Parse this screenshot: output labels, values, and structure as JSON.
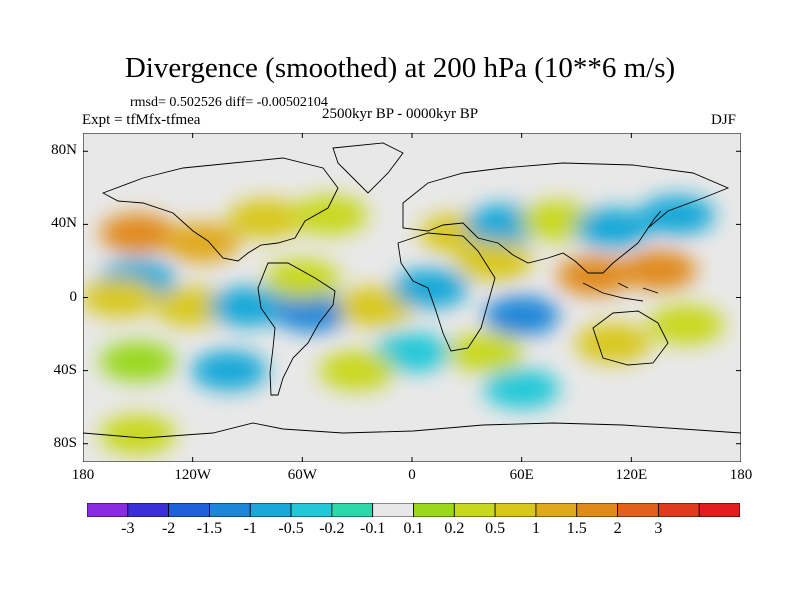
{
  "title": "Divergence (smoothed) at 200 hPa (10**6 m/s)",
  "stats_line": "rmsd= 0.502526 diff= -0.00502104",
  "experiment_label": "Expt = tfMfx-tfmea",
  "period_label": "2500kyr BP - 0000kyr BP",
  "season_label": "DJF",
  "map": {
    "background_color": "#e8e8e8",
    "projection": "cylindrical equidistant",
    "lat_range": [
      -90,
      90
    ],
    "lon_range": [
      -180,
      180
    ],
    "lat_ticks": [
      {
        "value": 80,
        "label": "80N"
      },
      {
        "value": 40,
        "label": "40N"
      },
      {
        "value": 0,
        "label": "0"
      },
      {
        "value": -40,
        "label": "40S"
      },
      {
        "value": -80,
        "label": "80S"
      }
    ],
    "lon_ticks": [
      {
        "value": -180,
        "label": "180"
      },
      {
        "value": -120,
        "label": "120W"
      },
      {
        "value": -60,
        "label": "60W"
      },
      {
        "value": 0,
        "label": "0"
      },
      {
        "value": 60,
        "label": "60E"
      },
      {
        "value": 120,
        "label": "120E"
      },
      {
        "value": 180,
        "label": "180"
      }
    ]
  },
  "colorbar": {
    "colors": [
      "#8a2be2",
      "#3b2fd9",
      "#1f5fd8",
      "#1c86d8",
      "#19a8d8",
      "#22c8d8",
      "#2bd8a8",
      "#e8e8e8",
      "#9ad81c",
      "#c8d81c",
      "#d8c81c",
      "#e0a81c",
      "#e08a1c",
      "#e0601c",
      "#e03a1c",
      "#e01c1c"
    ],
    "labels": [
      "-3",
      "-2",
      "-1.5",
      "-1",
      "-0.5",
      "-0.2",
      "-0.1",
      "0.1",
      "0.2",
      "0.5",
      "1",
      "1.5",
      "2",
      "3"
    ]
  },
  "chart_data": {
    "type": "heatmap",
    "title": "Divergence (smoothed) at 200 hPa (10**6 m/s)",
    "units": "10**6 m/s",
    "season": "DJF",
    "levels": [
      -3,
      -2,
      -1.5,
      -1,
      -0.5,
      -0.2,
      -0.1,
      0.1,
      0.2,
      0.5,
      1,
      1.5,
      2,
      3
    ],
    "features": [
      {
        "lon": -150,
        "lat": 35,
        "value": 1.8
      },
      {
        "lon": -115,
        "lat": 30,
        "value": 1.2
      },
      {
        "lon": -80,
        "lat": 43,
        "value": 0.8
      },
      {
        "lon": -45,
        "lat": 45,
        "value": 0.3
      },
      {
        "lon": -150,
        "lat": 10,
        "value": -0.6
      },
      {
        "lon": -160,
        "lat": 0,
        "value": 1.0
      },
      {
        "lon": -120,
        "lat": -5,
        "value": 0.7
      },
      {
        "lon": -90,
        "lat": -5,
        "value": -0.8
      },
      {
        "lon": -55,
        "lat": -8,
        "value": -1.0
      },
      {
        "lon": -60,
        "lat": 10,
        "value": 0.5
      },
      {
        "lon": -20,
        "lat": -5,
        "value": 0.9
      },
      {
        "lon": 10,
        "lat": 5,
        "value": -0.5
      },
      {
        "lon": 25,
        "lat": 35,
        "value": 0.6
      },
      {
        "lon": 50,
        "lat": 40,
        "value": -0.9
      },
      {
        "lon": 80,
        "lat": 42,
        "value": 0.4
      },
      {
        "lon": 110,
        "lat": 38,
        "value": -0.6
      },
      {
        "lon": 145,
        "lat": 45,
        "value": -0.8
      },
      {
        "lon": 45,
        "lat": 20,
        "value": 0.9
      },
      {
        "lon": 100,
        "lat": 12,
        "value": 1.9
      },
      {
        "lon": 135,
        "lat": 15,
        "value": 2.0
      },
      {
        "lon": 60,
        "lat": -10,
        "value": -1.2
      },
      {
        "lon": 40,
        "lat": -30,
        "value": 0.3
      },
      {
        "lon": 110,
        "lat": -25,
        "value": 0.6
      },
      {
        "lon": 150,
        "lat": -15,
        "value": 0.5
      },
      {
        "lon": 0,
        "lat": -30,
        "value": -0.4
      },
      {
        "lon": -100,
        "lat": -40,
        "value": -0.5
      },
      {
        "lon": -30,
        "lat": -40,
        "value": 0.4
      },
      {
        "lon": -150,
        "lat": -35,
        "value": 0.2
      },
      {
        "lon": 60,
        "lat": -50,
        "value": -0.3
      },
      {
        "lon": -150,
        "lat": -75,
        "value": 0.3
      }
    ]
  }
}
